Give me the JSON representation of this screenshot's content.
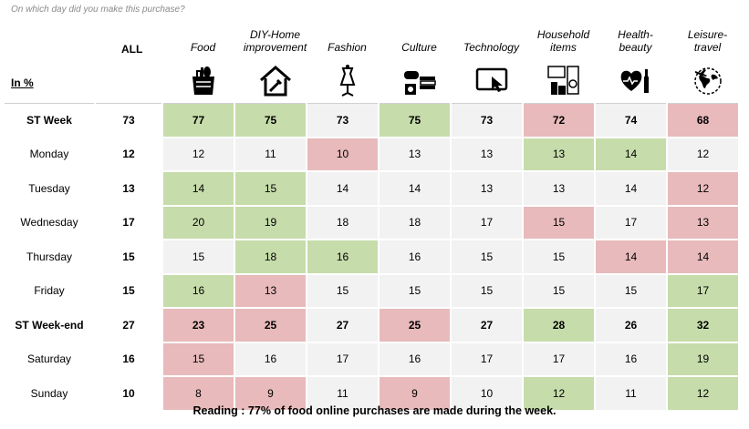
{
  "question": "On which day did you make this purchase?",
  "all_header": "ALL",
  "unit_label": "In %",
  "reading": "Reading : 77% of food online purchases are made during the week.",
  "colors": {
    "high": "#c6dcaa",
    "low": "#e8babb",
    "neutral": "#f2f2f2"
  },
  "chart_data": {
    "type": "table",
    "title": "On which day did you make this purchase?",
    "unit": "In %",
    "columns": [
      {
        "key": "food",
        "lines": [
          "Food"
        ],
        "icon": "grocery-bag-icon"
      },
      {
        "key": "diy",
        "lines": [
          "DIY-Home",
          "improvement"
        ],
        "icon": "house-tools-icon"
      },
      {
        "key": "fashion",
        "lines": [
          "Fashion"
        ],
        "icon": "dress-mannequin-icon"
      },
      {
        "key": "culture",
        "lines": [
          "Culture"
        ],
        "icon": "gamepad-books-icon"
      },
      {
        "key": "technology",
        "lines": [
          "Technology"
        ],
        "icon": "touchscreen-icon"
      },
      {
        "key": "household",
        "lines": [
          "Household",
          "items"
        ],
        "icon": "appliances-icon"
      },
      {
        "key": "health",
        "lines": [
          "Health-",
          "beauty"
        ],
        "icon": "heart-cosmetics-icon"
      },
      {
        "key": "leisure",
        "lines": [
          "Leisure-",
          "travel"
        ],
        "icon": "globe-plane-icon"
      }
    ],
    "rows": [
      {
        "label": "ST Week",
        "bold": true,
        "all": 73,
        "values": [
          77,
          75,
          73,
          75,
          73,
          72,
          74,
          68
        ],
        "highlight": [
          "high",
          "high",
          "none",
          "high",
          "none",
          "low",
          "none",
          "low"
        ]
      },
      {
        "label": "Monday",
        "bold": false,
        "all": 12,
        "values": [
          12,
          11,
          10,
          13,
          13,
          13,
          14,
          12
        ],
        "highlight": [
          "none",
          "none",
          "low",
          "none",
          "none",
          "high",
          "high",
          "none"
        ]
      },
      {
        "label": "Tuesday",
        "bold": false,
        "all": 13,
        "values": [
          14,
          15,
          14,
          14,
          13,
          13,
          14,
          12
        ],
        "highlight": [
          "high",
          "high",
          "none",
          "none",
          "none",
          "none",
          "none",
          "low"
        ]
      },
      {
        "label": "Wednesday",
        "bold": false,
        "all": 17,
        "values": [
          20,
          19,
          18,
          18,
          17,
          15,
          17,
          13
        ],
        "highlight": [
          "high",
          "high",
          "none",
          "none",
          "none",
          "low",
          "none",
          "low"
        ]
      },
      {
        "label": "Thursday",
        "bold": false,
        "all": 15,
        "values": [
          15,
          18,
          16,
          16,
          15,
          15,
          14,
          14
        ],
        "highlight": [
          "none",
          "high",
          "high",
          "none",
          "none",
          "none",
          "low",
          "low"
        ]
      },
      {
        "label": "Friday",
        "bold": false,
        "all": 15,
        "values": [
          16,
          13,
          15,
          15,
          15,
          15,
          15,
          17
        ],
        "highlight": [
          "high",
          "low",
          "none",
          "none",
          "none",
          "none",
          "none",
          "high"
        ]
      },
      {
        "label": "ST Week-end",
        "bold": true,
        "all": 27,
        "values": [
          23,
          25,
          27,
          25,
          27,
          28,
          26,
          32
        ],
        "highlight": [
          "low",
          "low",
          "none",
          "low",
          "none",
          "high",
          "none",
          "high"
        ]
      },
      {
        "label": "Saturday",
        "bold": false,
        "all": 16,
        "values": [
          15,
          16,
          17,
          16,
          17,
          17,
          16,
          19
        ],
        "highlight": [
          "low",
          "none",
          "none",
          "none",
          "none",
          "none",
          "none",
          "high"
        ]
      },
      {
        "label": "Sunday",
        "bold": false,
        "all": 10,
        "values": [
          8,
          9,
          11,
          9,
          10,
          12,
          11,
          12
        ],
        "highlight": [
          "low",
          "low",
          "none",
          "low",
          "none",
          "high",
          "none",
          "high"
        ]
      }
    ]
  }
}
